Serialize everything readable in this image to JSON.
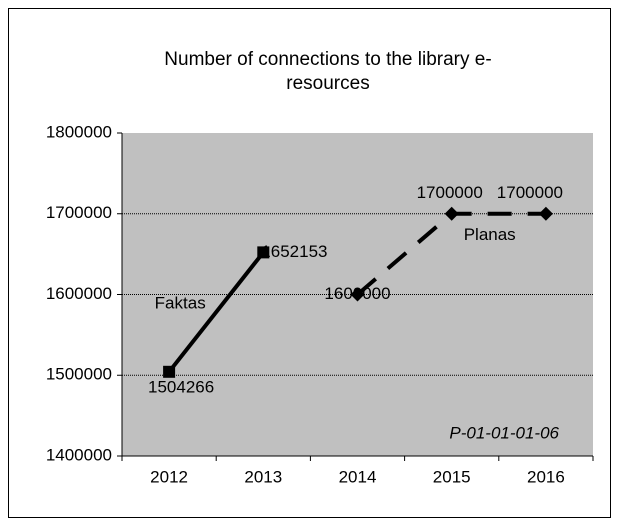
{
  "chart_data": {
    "type": "line",
    "title": [
      "Number of connections to the library e-",
      "resources"
    ],
    "annotation": "P-01-01-01-06",
    "categories": [
      "2012",
      "2013",
      "2014",
      "2015",
      "2016"
    ],
    "series": [
      {
        "name": "Faktas",
        "color": "#000000",
        "line_style": "solid",
        "marker": "square",
        "values": [
          1504266,
          1652153,
          null,
          null,
          null
        ]
      },
      {
        "name": "Planas",
        "color": "#000000",
        "line_style": "dashed",
        "marker": "diamond",
        "values": [
          null,
          null,
          1600000,
          1700000,
          1700000
        ]
      }
    ],
    "ylim": [
      1400000,
      1800000
    ],
    "yticks": [
      1400000,
      1500000,
      1600000,
      1700000,
      1800000
    ],
    "grid": true,
    "plot_background": "#c0c0c0"
  }
}
